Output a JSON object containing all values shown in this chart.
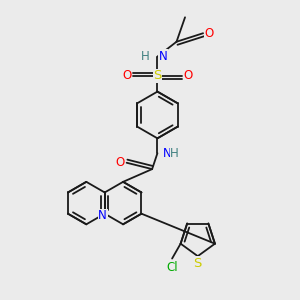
{
  "bg_color": "#ebebeb",
  "bond_color": "#1a1a1a",
  "atom_colors": {
    "N": "#0000ff",
    "O": "#ff0000",
    "S": "#cccc00",
    "Cl": "#00aa00",
    "H": "#408080"
  },
  "figsize": [
    3.0,
    3.0
  ],
  "dpi": 100
}
